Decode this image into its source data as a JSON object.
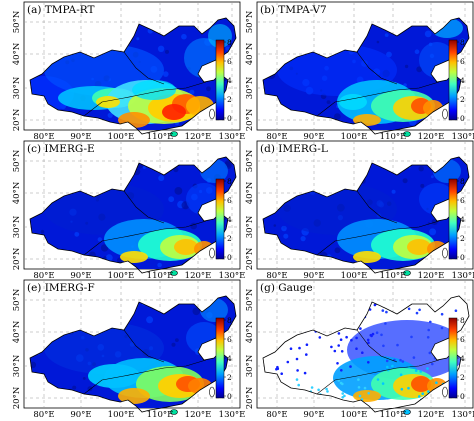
{
  "figure": {
    "panels": [
      {
        "key": "tmpa-rt",
        "title": "(a) TMPA-RT",
        "scheme": "rt"
      },
      {
        "key": "tmpa-v7",
        "title": "(b) TMPA-V7",
        "scheme": "v7"
      },
      {
        "key": "imerg-e",
        "title": "(c) IMERG-E",
        "scheme": "ime"
      },
      {
        "key": "imerg-l",
        "title": "(d) IMERG-L",
        "scheme": "iml"
      },
      {
        "key": "imerg-f",
        "title": "(e) IMERG-F",
        "scheme": "imf"
      },
      {
        "key": "gauge",
        "title": "(g) Gauge",
        "scheme": "gauge"
      }
    ],
    "lat_labels": [
      "50°N",
      "40°N",
      "30°N",
      "20°N"
    ],
    "lon_labels": [
      "80°E",
      "90°E",
      "100°E",
      "110°E",
      "120°E",
      "130°E"
    ],
    "colorbar_ticks": [
      "8",
      "6",
      "4",
      "2",
      "0"
    ],
    "colorbar_colors": [
      "#00008f",
      "#0000ff",
      "#0060ff",
      "#00bfff",
      "#40ffbf",
      "#bfff40",
      "#ffd000",
      "#ff7000",
      "#ff1000",
      "#900000"
    ]
  }
}
